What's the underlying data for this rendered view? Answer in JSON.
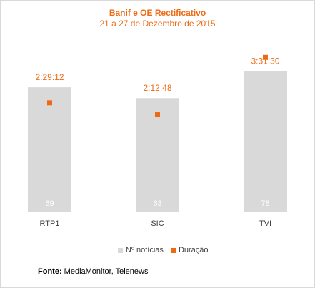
{
  "chart_data": {
    "type": "bar",
    "title": "Banif e OE Rectificativo",
    "subtitle": "21 a 27 de Dezembro de 2015",
    "categories": [
      "RTP1",
      "SIC",
      "TVI"
    ],
    "series": [
      {
        "name": "Nº notícias",
        "kind": "bar",
        "values": [
          69,
          63,
          78
        ],
        "color": "#d9d9d9",
        "label_color": "#ffffff"
      },
      {
        "name": "Duração",
        "kind": "marker",
        "values": [
          "2:29:12",
          "2:12:48",
          "3:31:30"
        ],
        "seconds": [
          8952,
          7968,
          12690
        ],
        "color": "#ee6a12"
      }
    ],
    "grid": false,
    "legend_position": "bottom"
  },
  "source": {
    "label": "Fonte:",
    "text": " MediaMonitor, Telenews"
  }
}
